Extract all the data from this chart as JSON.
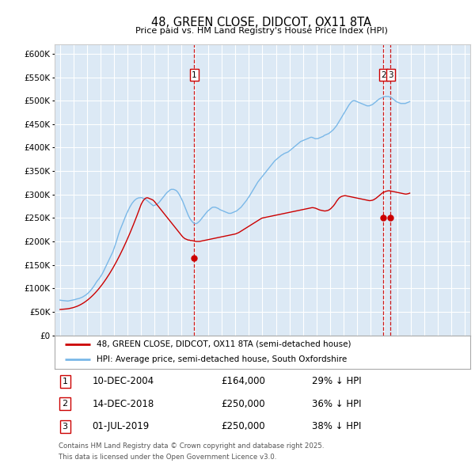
{
  "title": "48, GREEN CLOSE, DIDCOT, OX11 8TA",
  "subtitle": "Price paid vs. HM Land Registry's House Price Index (HPI)",
  "background_color": "#ffffff",
  "plot_bg_color": "#dce9f5",
  "grid_color": "#ffffff",
  "ylim": [
    0,
    620000
  ],
  "yticks": [
    0,
    50000,
    100000,
    150000,
    200000,
    250000,
    300000,
    350000,
    400000,
    450000,
    500000,
    550000,
    600000
  ],
  "ytick_labels": [
    "£0",
    "£50K",
    "£100K",
    "£150K",
    "£200K",
    "£250K",
    "£300K",
    "£350K",
    "£400K",
    "£450K",
    "£500K",
    "£550K",
    "£600K"
  ],
  "hpi_color": "#7ab8e8",
  "price_color": "#cc0000",
  "sale_marker_color": "#cc0000",
  "vline_color": "#cc0000",
  "legend_label_price": "48, GREEN CLOSE, DIDCOT, OX11 8TA (semi-detached house)",
  "legend_label_hpi": "HPI: Average price, semi-detached house, South Oxfordshire",
  "sale1_date": 2004.94,
  "sale1_price": 164000,
  "sale1_label": "1",
  "sale2_date": 2018.96,
  "sale2_price": 250000,
  "sale2_label": "2",
  "sale3_date": 2019.5,
  "sale3_price": 250000,
  "sale3_label": "3",
  "footer_line1": "Contains HM Land Registry data © Crown copyright and database right 2025.",
  "footer_line2": "This data is licensed under the Open Government Licence v3.0.",
  "table_entries": [
    {
      "num": "1",
      "date": "10-DEC-2004",
      "price": "£164,000",
      "pct": "29% ↓ HPI"
    },
    {
      "num": "2",
      "date": "14-DEC-2018",
      "price": "£250,000",
      "pct": "36% ↓ HPI"
    },
    {
      "num": "3",
      "date": "01-JUL-2019",
      "price": "£250,000",
      "pct": "38% ↓ HPI"
    }
  ],
  "hpi_data_monthly": {
    "start_year": 1995,
    "start_month": 1,
    "values": [
      75000,
      74500,
      74200,
      74000,
      73800,
      73500,
      73200,
      73000,
      73500,
      74000,
      74500,
      75000,
      75500,
      76000,
      76800,
      77500,
      78000,
      78500,
      79500,
      80500,
      81500,
      83000,
      84500,
      86000,
      88000,
      90000,
      92500,
      95000,
      98000,
      101000,
      104500,
      108000,
      112000,
      115500,
      118500,
      121500,
      125000,
      129000,
      133000,
      138000,
      143000,
      148000,
      153000,
      158000,
      163000,
      168000,
      173000,
      178000,
      185000,
      192000,
      199000,
      207000,
      215000,
      222000,
      228000,
      234000,
      240000,
      246000,
      252000,
      258000,
      263000,
      268000,
      273000,
      277000,
      281000,
      284000,
      287000,
      289000,
      291000,
      292000,
      293000,
      293000,
      293500,
      293000,
      292000,
      291000,
      289500,
      288000,
      286000,
      284000,
      282000,
      280000,
      278000,
      276000,
      277000,
      278000,
      279000,
      281000,
      283000,
      286000,
      289000,
      292000,
      295000,
      298000,
      301000,
      304000,
      306000,
      308000,
      310000,
      311000,
      311000,
      311000,
      310000,
      309000,
      307000,
      304000,
      300000,
      296000,
      291000,
      286000,
      280000,
      274000,
      268000,
      262000,
      256000,
      251000,
      247000,
      244000,
      241000,
      239000,
      238000,
      238000,
      239000,
      241000,
      243000,
      246000,
      249000,
      252000,
      255000,
      258000,
      261000,
      264000,
      266000,
      268000,
      270000,
      272000,
      273000,
      273000,
      273000,
      272000,
      271000,
      270000,
      268000,
      267000,
      266000,
      265000,
      264000,
      263000,
      262000,
      261000,
      260000,
      260000,
      260000,
      261000,
      262000,
      263000,
      264000,
      265000,
      267000,
      269000,
      271000,
      273000,
      276000,
      279000,
      282000,
      285000,
      288000,
      292000,
      295000,
      299000,
      303000,
      307000,
      311000,
      315000,
      319000,
      323000,
      327000,
      330000,
      333000,
      336000,
      339000,
      342000,
      345000,
      348000,
      351000,
      354000,
      357000,
      360000,
      363000,
      366000,
      369000,
      372000,
      374000,
      376000,
      378000,
      380000,
      382000,
      384000,
      385000,
      387000,
      388000,
      389000,
      390000,
      391000,
      393000,
      395000,
      397000,
      399000,
      401000,
      403000,
      405000,
      407000,
      409000,
      411000,
      413000,
      414000,
      415000,
      416000,
      417000,
      418000,
      419000,
      420000,
      421000,
      422000,
      422000,
      421000,
      420000,
      419000,
      419000,
      419000,
      420000,
      421000,
      422000,
      423000,
      424000,
      426000,
      427000,
      428000,
      429000,
      430000,
      432000,
      434000,
      436000,
      438000,
      441000,
      444000,
      447000,
      451000,
      455000,
      459000,
      463000,
      467000,
      471000,
      475000,
      479000,
      483000,
      487000,
      491000,
      494000,
      497000,
      499000,
      500000,
      500000,
      499000,
      498000,
      497000,
      496000,
      495000,
      494000,
      493000,
      492000,
      491000,
      490000,
      489000,
      489000,
      489000,
      490000,
      491000,
      492000,
      494000,
      496000,
      498000,
      500000,
      502000,
      504000,
      505000,
      506000,
      507000,
      508000,
      509000,
      509000,
      509000,
      509000,
      508000,
      507000,
      506000,
      504000,
      502000,
      500000,
      498000,
      497000,
      496000,
      495000,
      494000,
      494000,
      494000,
      494000,
      494000,
      495000,
      496000,
      497000,
      498000
    ]
  },
  "price_data_monthly": {
    "start_year": 1995,
    "start_month": 1,
    "values": [
      55000,
      55200,
      55400,
      55600,
      55800,
      56000,
      56300,
      56600,
      57000,
      57500,
      58000,
      58600,
      59200,
      60000,
      60800,
      61700,
      62700,
      63800,
      65000,
      66300,
      67700,
      69200,
      70800,
      72500,
      74300,
      76200,
      78200,
      80300,
      82500,
      84800,
      87200,
      89700,
      92300,
      95000,
      97800,
      100700,
      103700,
      106800,
      110000,
      113300,
      116700,
      120200,
      123800,
      127500,
      131300,
      135200,
      139200,
      143300,
      147500,
      151800,
      156200,
      160700,
      165300,
      170000,
      174800,
      179700,
      184700,
      189800,
      195000,
      200300,
      205700,
      211200,
      216800,
      222500,
      228300,
      234200,
      240200,
      246300,
      252500,
      258800,
      265200,
      271700,
      278300,
      283000,
      287000,
      290000,
      292000,
      293000,
      293000,
      292000,
      291000,
      290000,
      289000,
      287500,
      285000,
      282000,
      279000,
      276000,
      273000,
      270000,
      267000,
      264000,
      261000,
      258000,
      255000,
      252000,
      249000,
      246000,
      243000,
      240000,
      237000,
      234000,
      231000,
      228000,
      225000,
      222000,
      219000,
      216000,
      213000,
      210000,
      208000,
      206000,
      205000,
      204000,
      203000,
      203000,
      202000,
      202000,
      201500,
      201000,
      200500,
      200000,
      200000,
      200000,
      200000,
      200500,
      201000,
      201500,
      202000,
      202500,
      203000,
      203500,
      204000,
      204500,
      205000,
      205500,
      206000,
      206500,
      207000,
      207500,
      208000,
      208500,
      209000,
      209500,
      210000,
      210500,
      211000,
      211500,
      212000,
      212500,
      213000,
      213500,
      214000,
      214500,
      215000,
      215500,
      216000,
      217000,
      218000,
      219000,
      220500,
      222000,
      223500,
      225000,
      226500,
      228000,
      229500,
      231000,
      232500,
      234000,
      235500,
      237000,
      238500,
      240000,
      241500,
      243000,
      244500,
      246000,
      247500,
      249000,
      250000,
      250500,
      251000,
      251500,
      252000,
      252500,
      253000,
      253500,
      254000,
      254500,
      255000,
      255500,
      256000,
      256500,
      257000,
      257500,
      258000,
      258500,
      259000,
      259500,
      260000,
      260500,
      261000,
      261500,
      262000,
      262500,
      263000,
      263500,
      264000,
      264500,
      265000,
      265500,
      266000,
      266500,
      267000,
      267500,
      268000,
      268500,
      269000,
      269500,
      270000,
      270500,
      271000,
      271500,
      272000,
      272000,
      271500,
      271000,
      270000,
      269000,
      268000,
      267000,
      266500,
      266000,
      265500,
      265000,
      265000,
      265500,
      266000,
      267000,
      268500,
      270500,
      273000,
      275500,
      278500,
      282000,
      286000,
      289000,
      292000,
      294000,
      295500,
      296500,
      297000,
      297500,
      297500,
      297000,
      296500,
      296000,
      295500,
      295000,
      294500,
      294000,
      293500,
      293000,
      292500,
      292000,
      291500,
      291000,
      290500,
      290000,
      289500,
      289000,
      288500,
      288000,
      287500,
      287000,
      287000,
      287500,
      288000,
      289000,
      290500,
      292000,
      294000,
      296000,
      298000,
      300000,
      302000,
      304000,
      305000,
      306000,
      307000,
      307500,
      308000,
      308000,
      307500,
      307000,
      306500,
      306000,
      305500,
      305000,
      304500,
      304000,
      303500,
      303000,
      302500,
      302000,
      301500,
      301000,
      301000,
      301500,
      302000,
      303000
    ]
  }
}
